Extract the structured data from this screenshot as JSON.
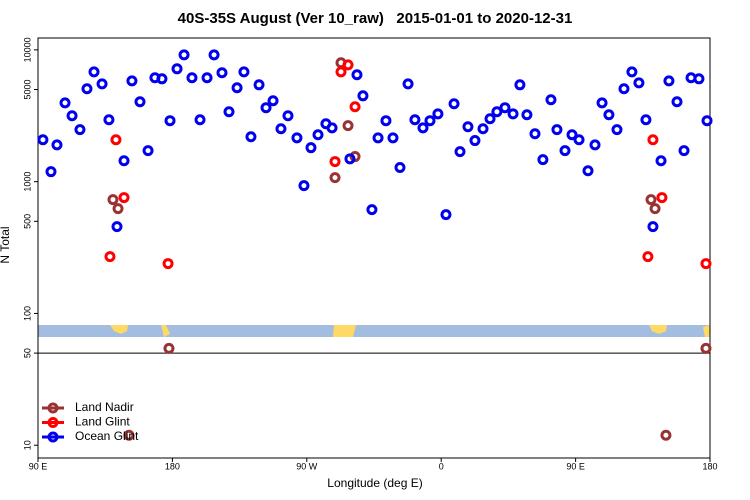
{
  "chart_data": {
    "type": "scatter",
    "title": "40S-35S August (Ver 10_raw)   2015-01-01 to 2020-12-31",
    "x_label": "Longitude (deg E)",
    "y_label": "N Total",
    "xlim": [
      90,
      540
    ],
    "ylim": [
      8,
      12300
    ],
    "log_y": true,
    "xticks": [
      {
        "value": 90,
        "label": "90 E"
      },
      180,
      {
        "value": 270,
        "label": "90 W"
      },
      {
        "value": 360,
        "label": "0"
      },
      {
        "value": 450,
        "label": "90 E"
      },
      {
        "value": 540,
        "label": "180"
      }
    ],
    "yticks": [
      10,
      50,
      100,
      500,
      1000,
      5000,
      10000
    ],
    "hline": 50,
    "legend": "bottom-left",
    "series": [
      {
        "name": "Land Nadir",
        "color": "#993333",
        "x": [
          140.2,
          143.6,
          150.9,
          177.7,
          288.9,
          292.9,
          297.6,
          302.3,
          500.5,
          503.2,
          510.5,
          537.3
        ],
        "values": [
          731,
          624,
          11.9,
          54.3,
          1072,
          7980,
          2660,
          1550,
          731,
          624,
          11.9,
          54.3
        ]
      },
      {
        "name": "Land Glint",
        "color": "#ff0000",
        "x": [
          138.2,
          142.2,
          147.6,
          177.1,
          288.9,
          292.9,
          297.6,
          302.3,
          498.4,
          501.8,
          507.8,
          537.3
        ],
        "values": [
          270,
          2080,
          757,
          239,
          1420,
          6810,
          7690,
          3700,
          270,
          2080,
          757,
          239
        ]
      },
      {
        "name": "Ocean Glint",
        "color": "#0000ee",
        "x": [
          93.3,
          98.7,
          102.7,
          108.1,
          112.8,
          118.1,
          122.8,
          127.5,
          132.9,
          137.5,
          142.9,
          147.6,
          152.9,
          158.3,
          163.7,
          168.3,
          173.0,
          178.4,
          183.1,
          187.8,
          193.1,
          198.5,
          203.2,
          207.9,
          213.2,
          217.9,
          223.3,
          227.9,
          232.6,
          238.0,
          242.7,
          247.4,
          252.7,
          257.4,
          263.4,
          268.1,
          272.8,
          277.5,
          282.8,
          286.9,
          298.9,
          303.6,
          307.6,
          313.6,
          317.7,
          323.0,
          327.7,
          332.4,
          337.8,
          342.4,
          347.8,
          352.5,
          357.8,
          363.2,
          368.6,
          372.6,
          377.9,
          382.6,
          388.0,
          392.7,
          397.3,
          402.7,
          408.1,
          412.7,
          417.4,
          422.8,
          428.1,
          433.5,
          437.5,
          442.9,
          447.6,
          452.3,
          458.3,
          463.0,
          467.7,
          472.3,
          477.7,
          482.4,
          487.7,
          492.4,
          497.1,
          501.8,
          507.2,
          512.5,
          517.9,
          522.6,
          527.3,
          532.6,
          538.0
        ],
        "values": [
          2080,
          1190,
          1900,
          3960,
          3160,
          2480,
          5070,
          6810,
          5520,
          2950,
          456,
          1440,
          5820,
          4040,
          1720,
          6140,
          6030,
          2900,
          7180,
          9160,
          6140,
          2950,
          6140,
          9160,
          6700,
          3390,
          5160,
          6810,
          2190,
          5430,
          3640,
          4110,
          2520,
          3160,
          2150,
          933,
          1810,
          2270,
          2750,
          2560,
          1490,
          6470,
          4480,
          613,
          2150,
          2900,
          2150,
          1280,
          5520,
          2950,
          2560,
          2900,
          3270,
          562,
          3900,
          1690,
          2610,
          2050,
          2520,
          3000,
          3390,
          3640,
          3270,
          5430,
          3220,
          2310,
          1470,
          4180,
          2480,
          1720,
          2270,
          2080,
          1210,
          1900,
          3960,
          3220,
          2480,
          5070,
          6810,
          5620,
          2950,
          456,
          1440,
          5820,
          4040,
          1720,
          6140,
          6030,
          2900
        ]
      }
    ]
  }
}
